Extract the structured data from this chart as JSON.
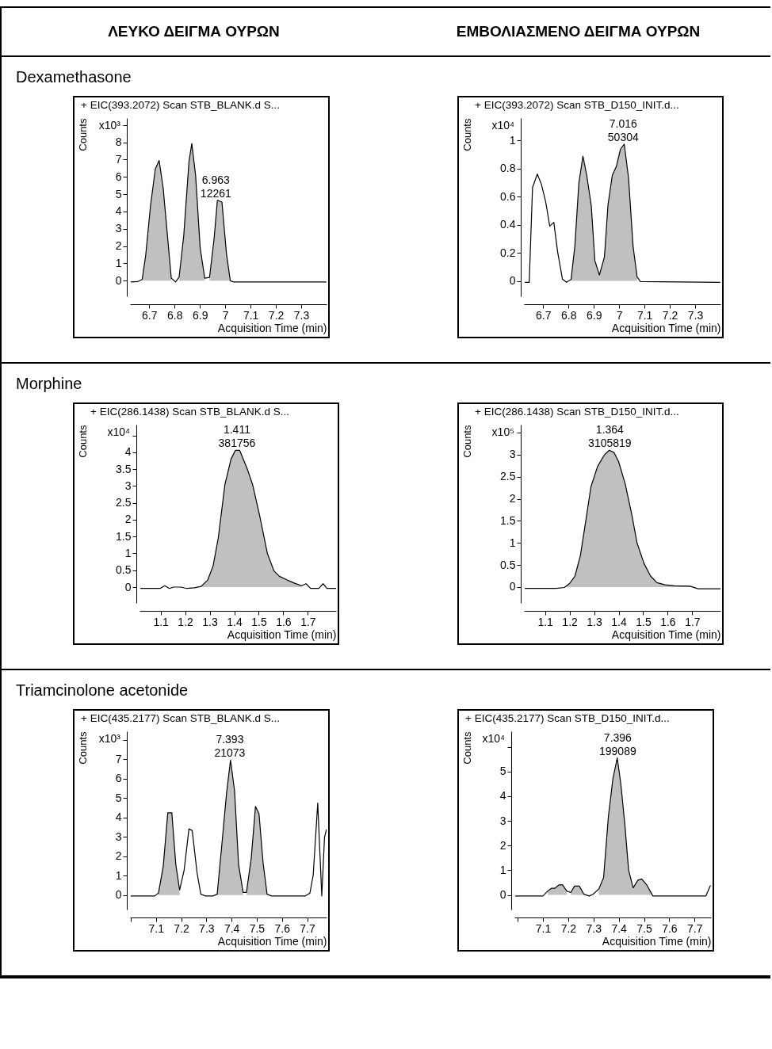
{
  "chart_data": [
    {
      "type": "other",
      "annotations": [
        "ΛΕΥΚΟ ΔΕΙΓΜΑ ΟΥΡΩΝ",
        "ΕΜΒΟΛΙΑΣΜΕΝΟ ΔΕΙΓΜΑ ΟΥΡΩΝ"
      ]
    },
    {
      "type": "other",
      "title": "Dexamethasone"
    },
    {
      "type": "line",
      "title": "+ EIC(393.2072) Scan STB_BLANK.d  S...",
      "xlabel": "Acquisition Time (min)",
      "ylabel": "Counts",
      "xlim": [
        6.624,
        7.4
      ],
      "xticks": [
        6.7,
        6.8,
        6.9,
        7,
        7.1,
        7.2,
        7.3
      ],
      "ylim": [
        -0.9,
        9.4
      ],
      "yticks": [
        0,
        1,
        2,
        3,
        4,
        5,
        6,
        7,
        8,
        {
          "value": 9,
          "label": null
        }
      ],
      "annotations": [
        "x10³",
        {
          "text": "6.963\n12261",
          "x": 6.963,
          "y": 4.65
        }
      ],
      "series": [
        {
          "type": "area",
          "color": "#c0c0c0",
          "x": [
            6.672,
            6.686,
            6.705,
            6.724,
            6.739,
            6.755,
            6.787
          ],
          "values": [
            0.07,
            1.47,
            4.33,
            6.46,
            6.95,
            5.36,
            0.15
          ]
        },
        {
          "type": "area",
          "color": "#c0c0c0",
          "x": [
            6.818,
            6.836,
            6.857,
            6.868,
            6.883,
            6.901,
            6.919
          ],
          "values": [
            0.22,
            2.57,
            6.9,
            7.93,
            6.09,
            1.91,
            0.15
          ]
        },
        {
          "type": "area",
          "color": "#c0c0c0",
          "x": [
            6.938,
            6.956,
            6.969,
            6.987,
            7.005,
            7.02
          ],
          "values": [
            0.19,
            2.42,
            4.65,
            4.55,
            1.54,
            0
          ]
        },
        {
          "type": "line",
          "color": "#000000",
          "x": [
            6.627,
            6.655,
            6.672,
            6.686,
            6.705,
            6.724,
            6.739,
            6.755,
            6.787,
            6.804,
            6.818,
            6.836,
            6.857,
            6.868,
            6.883,
            6.901,
            6.919,
            6.938,
            6.956,
            6.969,
            6.987,
            7.005,
            7.02,
            7.034,
            7.399
          ],
          "values": [
            -0.07,
            -0.05,
            0.07,
            1.47,
            4.33,
            6.46,
            6.95,
            5.36,
            0.15,
            -0.07,
            0.22,
            2.57,
            6.9,
            7.93,
            6.09,
            1.91,
            0.15,
            0.19,
            2.42,
            4.65,
            4.55,
            1.54,
            0,
            -0.07,
            -0.07
          ]
        }
      ]
    },
    {
      "type": "line",
      "title": "+ EIC(393.2072) Scan STB_D150_INIT.d...",
      "xlabel": "Acquisition Time (min)",
      "ylabel": "Counts",
      "xlim": [
        6.624,
        7.4
      ],
      "xticks": [
        6.7,
        6.8,
        6.9,
        7,
        7.1,
        7.2,
        7.3
      ],
      "ylim": [
        -0.11,
        1.16
      ],
      "yticks": [
        0,
        0.2,
        0.4,
        0.6,
        0.8,
        1
      ],
      "annotations": [
        "x10⁴",
        {
          "text": "7.016\n50304",
          "x": 7.016,
          "y": 0.975
        }
      ],
      "series": [
        {
          "type": "area",
          "color": "#c0c0c0",
          "x": [
            6.81,
            6.825,
            6.841,
            6.857,
            6.872,
            6.89,
            6.904,
            6.922
          ],
          "values": [
            0.01,
            0.245,
            0.697,
            0.888,
            0.752,
            0.534,
            0.145,
            0.042
          ]
        },
        {
          "type": "area",
          "color": "#c0c0c0",
          "x": [
            6.922,
            6.942,
            6.956,
            6.973,
            6.989,
            7.005,
            7.02,
            7.037,
            7.055,
            7.071
          ],
          "values": [
            0.042,
            0.172,
            0.543,
            0.752,
            0.815,
            0.937,
            0.975,
            0.734,
            0.245,
            0.027
          ]
        },
        {
          "type": "line",
          "color": "#000000",
          "x": [
            6.627,
            6.645,
            6.658,
            6.677,
            6.693,
            6.71,
            6.726,
            6.742,
            6.757,
            6.776,
            6.792,
            6.81,
            6.825,
            6.841,
            6.857,
            6.872,
            6.89,
            6.904,
            6.922,
            6.942,
            6.956,
            6.973,
            6.989,
            7.005,
            7.02,
            7.037,
            7.055,
            7.071,
            7.084,
            7.399
          ],
          "values": [
            -0.01,
            -0.01,
            0.665,
            0.761,
            0.688,
            0.562,
            0.39,
            0.417,
            0.208,
            0.013,
            -0.01,
            0.01,
            0.245,
            0.697,
            0.888,
            0.752,
            0.534,
            0.145,
            0.042,
            0.172,
            0.543,
            0.752,
            0.815,
            0.937,
            0.975,
            0.734,
            0.245,
            0.027,
            -0.005,
            -0.01
          ]
        }
      ]
    },
    {
      "type": "other",
      "title": "Morphine"
    },
    {
      "type": "line",
      "title": "+ EIC(286.1438) Scan STB_BLANK.d  S...",
      "xlabel": "Acquisition Time (min)",
      "ylabel": "Counts",
      "xlim": [
        1.014,
        1.815
      ],
      "xticks": [
        1.1,
        1.2,
        1.3,
        1.4,
        1.5,
        1.6,
        1.7
      ],
      "ylim": [
        -0.47,
        4.82
      ],
      "yticks": [
        0,
        0.5,
        1,
        1.5,
        2,
        2.5,
        3,
        3.5,
        4,
        {
          "value": 4.5,
          "label": null
        }
      ],
      "annotations": [
        "x10⁴",
        {
          "text": "1.411\n381756",
          "x": 1.411,
          "y": 4.06
        }
      ],
      "series": [
        {
          "type": "area",
          "color": "#c0c0c0",
          "x": [
            1.238,
            1.265,
            1.292,
            1.314,
            1.335,
            1.362,
            1.387,
            1.405,
            1.422,
            1.454,
            1.475,
            1.503,
            1.535,
            1.562,
            1.584,
            1.616,
            1.648,
            1.675
          ],
          "values": [
            -0.02,
            0.02,
            0.21,
            0.63,
            1.46,
            3.04,
            3.8,
            4.06,
            4.06,
            3.49,
            3.04,
            2.14,
            1.0,
            0.48,
            0.32,
            0.21,
            0.11,
            0.04
          ]
        },
        {
          "type": "line",
          "color": "#000000",
          "x": [
            1.017,
            1.098,
            1.117,
            1.136,
            1.152,
            1.184,
            1.206,
            1.238,
            1.265,
            1.292,
            1.314,
            1.335,
            1.362,
            1.387,
            1.405,
            1.422,
            1.454,
            1.475,
            1.503,
            1.535,
            1.562,
            1.584,
            1.616,
            1.648,
            1.675,
            1.693,
            1.711,
            1.745,
            1.762,
            1.778,
            1.815
          ],
          "values": [
            -0.04,
            -0.04,
            0.04,
            -0.04,
            0,
            0,
            -0.04,
            -0.02,
            0.02,
            0.21,
            0.63,
            1.46,
            3.04,
            3.8,
            4.06,
            4.06,
            3.49,
            3.04,
            2.14,
            1.0,
            0.48,
            0.32,
            0.21,
            0.11,
            0.04,
            0.1,
            -0.04,
            -0.04,
            0.1,
            -0.04,
            -0.04
          ]
        }
      ]
    },
    {
      "type": "line",
      "title": "+ EIC(286.1438) Scan STB_D150_INIT.d...",
      "xlabel": "Acquisition Time (min)",
      "ylabel": "Counts",
      "xlim": [
        1.014,
        1.815
      ],
      "xticks": [
        1.1,
        1.2,
        1.3,
        1.4,
        1.5,
        1.6,
        1.7
      ],
      "ylim": [
        -0.36,
        3.68
      ],
      "yticks": [
        0,
        0.5,
        1,
        1.5,
        2,
        2.5,
        3,
        {
          "value": 3.5,
          "label": null
        }
      ],
      "annotations": [
        "x10⁵",
        {
          "text": "1.364\n3105819",
          "x": 1.364,
          "y": 3.1
        }
      ],
      "series": [
        {
          "type": "area",
          "color": "#c0c0c0",
          "x": [
            1.179,
            1.2,
            1.222,
            1.244,
            1.265,
            1.287,
            1.314,
            1.341,
            1.362,
            1.381,
            1.4,
            1.427,
            1.454,
            1.475,
            1.503,
            1.53,
            1.556,
            1.589,
            1.627,
            1.691
          ],
          "values": [
            -0.01,
            0.08,
            0.25,
            0.71,
            1.46,
            2.27,
            2.73,
            2.99,
            3.1,
            3.05,
            2.84,
            2.33,
            1.63,
            1.0,
            0.54,
            0.25,
            0.1,
            0.05,
            0.03,
            0.02
          ]
        },
        {
          "type": "line",
          "color": "#000000",
          "x": [
            1.017,
            1.146,
            1.179,
            1.2,
            1.222,
            1.244,
            1.265,
            1.287,
            1.314,
            1.341,
            1.362,
            1.381,
            1.4,
            1.427,
            1.454,
            1.475,
            1.503,
            1.53,
            1.556,
            1.589,
            1.627,
            1.691,
            1.724,
            1.815
          ],
          "values": [
            -0.03,
            -0.03,
            -0.01,
            0.08,
            0.25,
            0.71,
            1.46,
            2.27,
            2.73,
            2.99,
            3.1,
            3.05,
            2.84,
            2.33,
            1.63,
            1.0,
            0.54,
            0.25,
            0.1,
            0.05,
            0.03,
            0.02,
            -0.04,
            -0.04
          ]
        }
      ]
    },
    {
      "type": "other",
      "title": "Triamcinolone acetonide"
    },
    {
      "type": "line",
      "title": "+ EIC(435.2177) Scan STB_BLANK.d  S...",
      "xlabel": "Acquisition Time (min)",
      "ylabel": "Counts",
      "xlim": [
        6.997,
        7.777
      ],
      "xticks": [
        {
          "value": 7,
          "label": null
        },
        7.1,
        7.2,
        7.3,
        7.4,
        7.5,
        7.6,
        7.7
      ],
      "ylim": [
        -0.75,
        8.44
      ],
      "yticks": [
        0,
        1,
        2,
        3,
        4,
        5,
        6,
        7,
        {
          "value": 8,
          "label": null
        }
      ],
      "annotations": [
        "x10³",
        {
          "text": "7.393\n21073",
          "x": 7.393,
          "y": 6.96
        }
      ],
      "series": [
        {
          "type": "area",
          "color": "#c0c0c0",
          "x": [
            7.11,
            7.129,
            7.147,
            7.163,
            7.179,
            7.194
          ],
          "values": [
            0.1,
            1.48,
            4.24,
            4.24,
            1.55,
            0.26
          ]
        },
        {
          "type": "area",
          "color": "#c0c0c0",
          "x": [
            7.343,
            7.362,
            7.38,
            7.396,
            7.412,
            7.428,
            7.446
          ],
          "values": [
            0.04,
            2.67,
            5.23,
            6.96,
            5.36,
            1.55,
            0.13
          ]
        },
        {
          "type": "area",
          "color": "#c0c0c0",
          "x": [
            7.459,
            7.478,
            7.495,
            7.509,
            7.525,
            7.541
          ],
          "values": [
            0.13,
            1.88,
            4.57,
            4.18,
            1.68,
            0.04
          ]
        },
        {
          "type": "line",
          "color": "#000000",
          "x": [
            7.0,
            7.095,
            7.11,
            7.129,
            7.147,
            7.163,
            7.179,
            7.194,
            7.212,
            7.231,
            7.244,
            7.263,
            7.278,
            7.297,
            7.326,
            7.343,
            7.362,
            7.38,
            7.396,
            7.412,
            7.428,
            7.446,
            7.459,
            7.478,
            7.495,
            7.509,
            7.525,
            7.541,
            7.559,
            7.693,
            7.711,
            7.724,
            7.742,
            7.758,
            7.769,
            7.777
          ],
          "values": [
            -0.05,
            -0.05,
            0.1,
            1.48,
            4.24,
            4.24,
            1.55,
            0.26,
            1.29,
            3.41,
            3.32,
            1.16,
            0.04,
            -0.05,
            -0.05,
            0.04,
            2.67,
            5.23,
            6.96,
            5.36,
            1.55,
            0.13,
            0.13,
            1.88,
            4.57,
            4.18,
            1.68,
            0.04,
            -0.05,
            -0.05,
            0.1,
            1.02,
            4.74,
            -0.05,
            2.99,
            3.39
          ]
        }
      ]
    },
    {
      "type": "line",
      "title": "+ EIC(435.2177) Scan STB_D150_INIT.d...",
      "xlabel": "Acquisition Time (min)",
      "ylabel": "Counts",
      "xlim": [
        6.987,
        7.765
      ],
      "xticks": [
        {
          "value": 7,
          "label": null
        },
        7.1,
        7.2,
        7.3,
        7.4,
        7.5,
        7.6,
        7.7
      ],
      "ylim": [
        -0.59,
        6.63
      ],
      "yticks": [
        0,
        1,
        2,
        3,
        4,
        5,
        {
          "value": 6,
          "label": null
        }
      ],
      "annotations": [
        "x10⁴",
        {
          "text": "7.396\n199089",
          "x": 7.396,
          "y": 5.55
        }
      ],
      "series": [
        {
          "type": "area",
          "color": "#c0c0c0",
          "x": [
            7.119,
            7.133,
            7.147,
            7.163,
            7.178,
            7.194
          ],
          "values": [
            0.16,
            0.27,
            0.27,
            0.41,
            0.41,
            0.16
          ]
        },
        {
          "type": "area",
          "color": "#c0c0c0",
          "x": [
            7.21,
            7.225,
            7.244,
            7.262
          ],
          "values": [
            0.1,
            0.36,
            0.36,
            0.03
          ]
        },
        {
          "type": "area",
          "color": "#c0c0c0",
          "x": [
            7.321,
            7.34,
            7.359,
            7.377,
            7.394,
            7.408,
            7.424,
            7.439,
            7.457
          ],
          "values": [
            0.24,
            0.7,
            3.18,
            4.72,
            5.55,
            4.52,
            2.87,
            1.01,
            0.29
          ]
        },
        {
          "type": "area",
          "color": "#c0c0c0",
          "x": [
            7.457,
            7.476,
            7.491,
            7.512,
            7.535
          ],
          "values": [
            0.29,
            0.6,
            0.65,
            0.39,
            -0.04
          ]
        },
        {
          "type": "line",
          "color": "#000000",
          "x": [
            6.99,
            7.1,
            7.119,
            7.133,
            7.147,
            7.163,
            7.178,
            7.194,
            7.21,
            7.225,
            7.244,
            7.262,
            7.283,
            7.298,
            7.321,
            7.34,
            7.359,
            7.377,
            7.394,
            7.408,
            7.424,
            7.439,
            7.457,
            7.476,
            7.491,
            7.512,
            7.535,
            7.745,
            7.763
          ],
          "values": [
            -0.04,
            -0.04,
            0.16,
            0.27,
            0.27,
            0.41,
            0.41,
            0.16,
            0.1,
            0.36,
            0.36,
            0.03,
            -0.04,
            0.03,
            0.24,
            0.7,
            3.18,
            4.72,
            5.55,
            4.52,
            2.87,
            1.01,
            0.29,
            0.6,
            0.65,
            0.39,
            -0.04,
            -0.04,
            0.39
          ]
        }
      ]
    }
  ]
}
